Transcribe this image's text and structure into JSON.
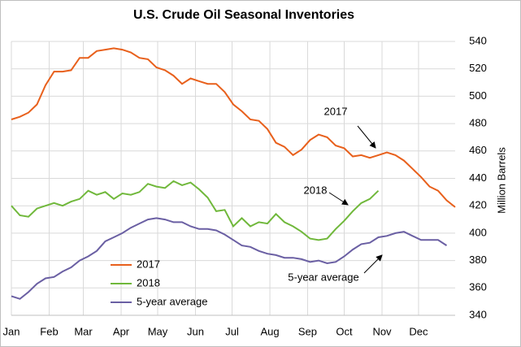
{
  "chart_data": {
    "type": "line",
    "title": "U.S. Crude Oil Seasonal Inventories",
    "y_label": "Million Barrels",
    "x": [
      0,
      1,
      2,
      3,
      4,
      5,
      6,
      7,
      8,
      9,
      10,
      11,
      12,
      13,
      14,
      15,
      16,
      17,
      18,
      19,
      20,
      21,
      22,
      23,
      24,
      25,
      26,
      27,
      28,
      29,
      30,
      31,
      32,
      33,
      34,
      35,
      36,
      37,
      38,
      39,
      40,
      41,
      42,
      43,
      44,
      45,
      46,
      47,
      48,
      49,
      50,
      51,
      52
    ],
    "xlim": [
      0,
      52
    ],
    "xticks": [
      {
        "value": 0,
        "label": "Jan"
      },
      {
        "value": 4.43,
        "label": "Feb"
      },
      {
        "value": 8.43,
        "label": "Mar"
      },
      {
        "value": 12.86,
        "label": "Apr"
      },
      {
        "value": 17.14,
        "label": "May"
      },
      {
        "value": 21.57,
        "label": "Jun"
      },
      {
        "value": 25.86,
        "label": "Jul"
      },
      {
        "value": 30.29,
        "label": "Aug"
      },
      {
        "value": 34.71,
        "label": "Sep"
      },
      {
        "value": 39,
        "label": "Oct"
      },
      {
        "value": 43.43,
        "label": "Nov"
      },
      {
        "value": 47.71,
        "label": "Dec"
      }
    ],
    "ylim": [
      340,
      540
    ],
    "yticks": [
      340,
      360,
      380,
      400,
      420,
      440,
      460,
      480,
      500,
      520,
      540
    ],
    "grid": true,
    "legend": "lower left",
    "series": [
      {
        "name": "2017",
        "color": "#e8601c",
        "values": [
          483,
          485,
          488,
          494,
          508,
          518,
          518,
          519,
          528,
          528,
          533,
          534,
          535,
          534,
          532,
          528,
          527,
          521,
          519,
          515,
          509,
          513,
          511,
          509,
          509,
          503,
          494,
          489,
          483,
          482,
          476,
          466,
          463,
          457,
          461,
          468,
          472,
          470,
          464,
          462,
          456,
          457,
          455,
          457,
          459,
          457,
          453,
          447,
          441,
          434,
          431,
          424,
          419
        ]
      },
      {
        "name": "2018",
        "color": "#70b83b",
        "values": [
          420,
          413,
          412,
          418,
          420,
          422,
          420,
          423,
          425,
          431,
          428,
          430,
          425,
          429,
          428,
          430,
          436,
          434,
          433,
          438,
          435,
          437,
          432,
          426,
          416,
          417,
          405,
          411,
          405,
          408,
          407,
          414,
          408,
          405,
          401,
          396,
          395,
          396,
          403,
          409,
          416,
          422,
          425,
          431,
          null,
          null,
          null,
          null,
          null,
          null,
          null,
          null,
          null
        ]
      },
      {
        "name": "5-year average",
        "color": "#6a5fa3",
        "values": [
          354,
          352,
          357,
          363,
          367,
          368,
          372,
          375,
          380,
          383,
          387,
          394,
          397,
          400,
          404,
          407,
          410,
          411,
          410,
          408,
          408,
          405,
          403,
          403,
          402,
          399,
          395,
          391,
          390,
          387,
          385,
          384,
          382,
          382,
          381,
          379,
          380,
          378,
          379,
          383,
          388,
          392,
          393,
          397,
          398,
          400,
          401,
          398,
          395,
          395,
          395,
          391,
          null
        ]
      }
    ],
    "annotations": [
      "2017",
      "2018",
      "5-year average"
    ]
  }
}
